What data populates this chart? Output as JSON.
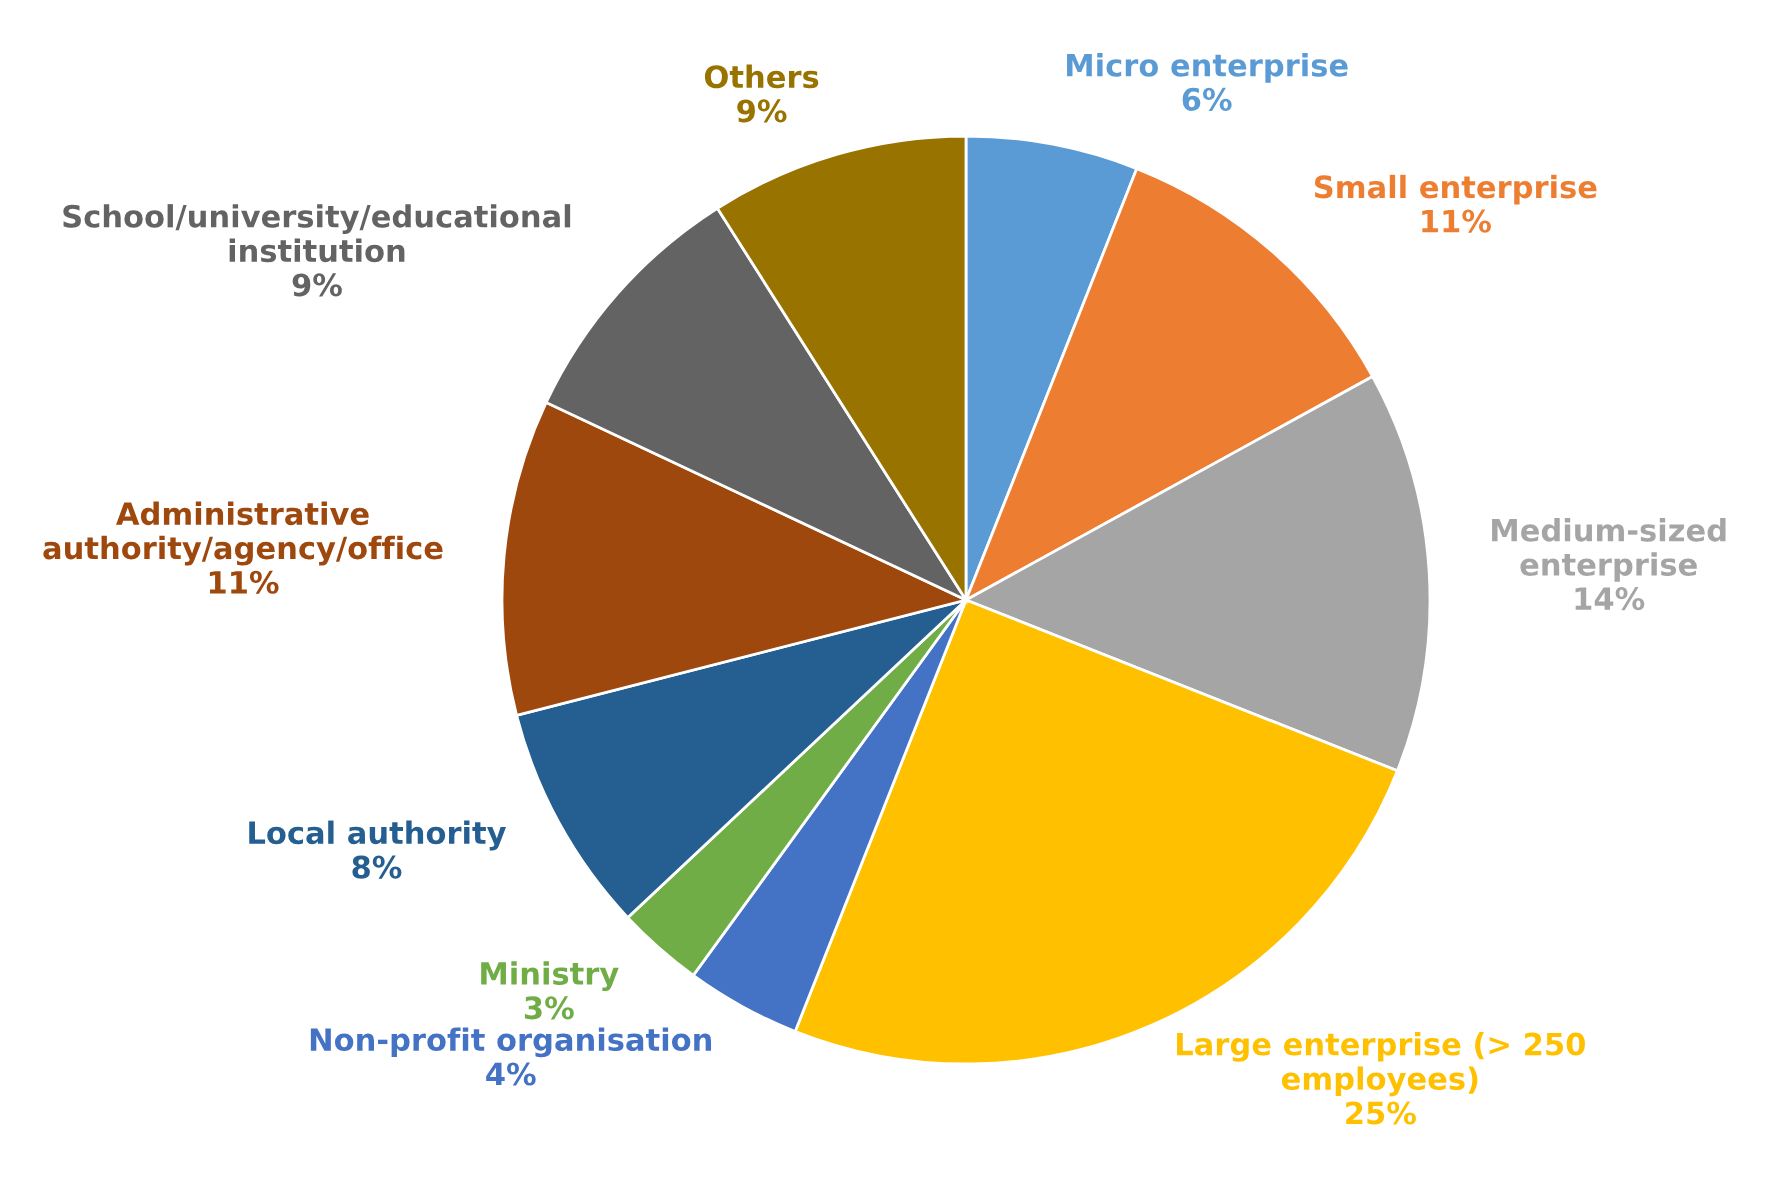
{
  "chart_data": {
    "type": "pie",
    "categories": [
      "Micro enterprise",
      "Small enterprise",
      "Medium-sized\nenterprise",
      "Large enterprise (> 250\nemployees)",
      "Non-profit organisation",
      "Ministry",
      "Local authority",
      "Administrative\nauthority/agency/office",
      "School/university/educational\ninstitution",
      "Others"
    ],
    "values": [
      6,
      11,
      14,
      25,
      4,
      3,
      8,
      11,
      9,
      9
    ],
    "value_labels": [
      "6%",
      "11%",
      "14%",
      "25%",
      "4%",
      "3%",
      "8%",
      "11%",
      "9%",
      "9%"
    ],
    "colors": [
      "#5b9bd5",
      "#ed7d31",
      "#a5a5a5",
      "#ffc000",
      "#4472c4",
      "#70ad47",
      "#255e91",
      "#9e480e",
      "#636363",
      "#997300"
    ]
  }
}
